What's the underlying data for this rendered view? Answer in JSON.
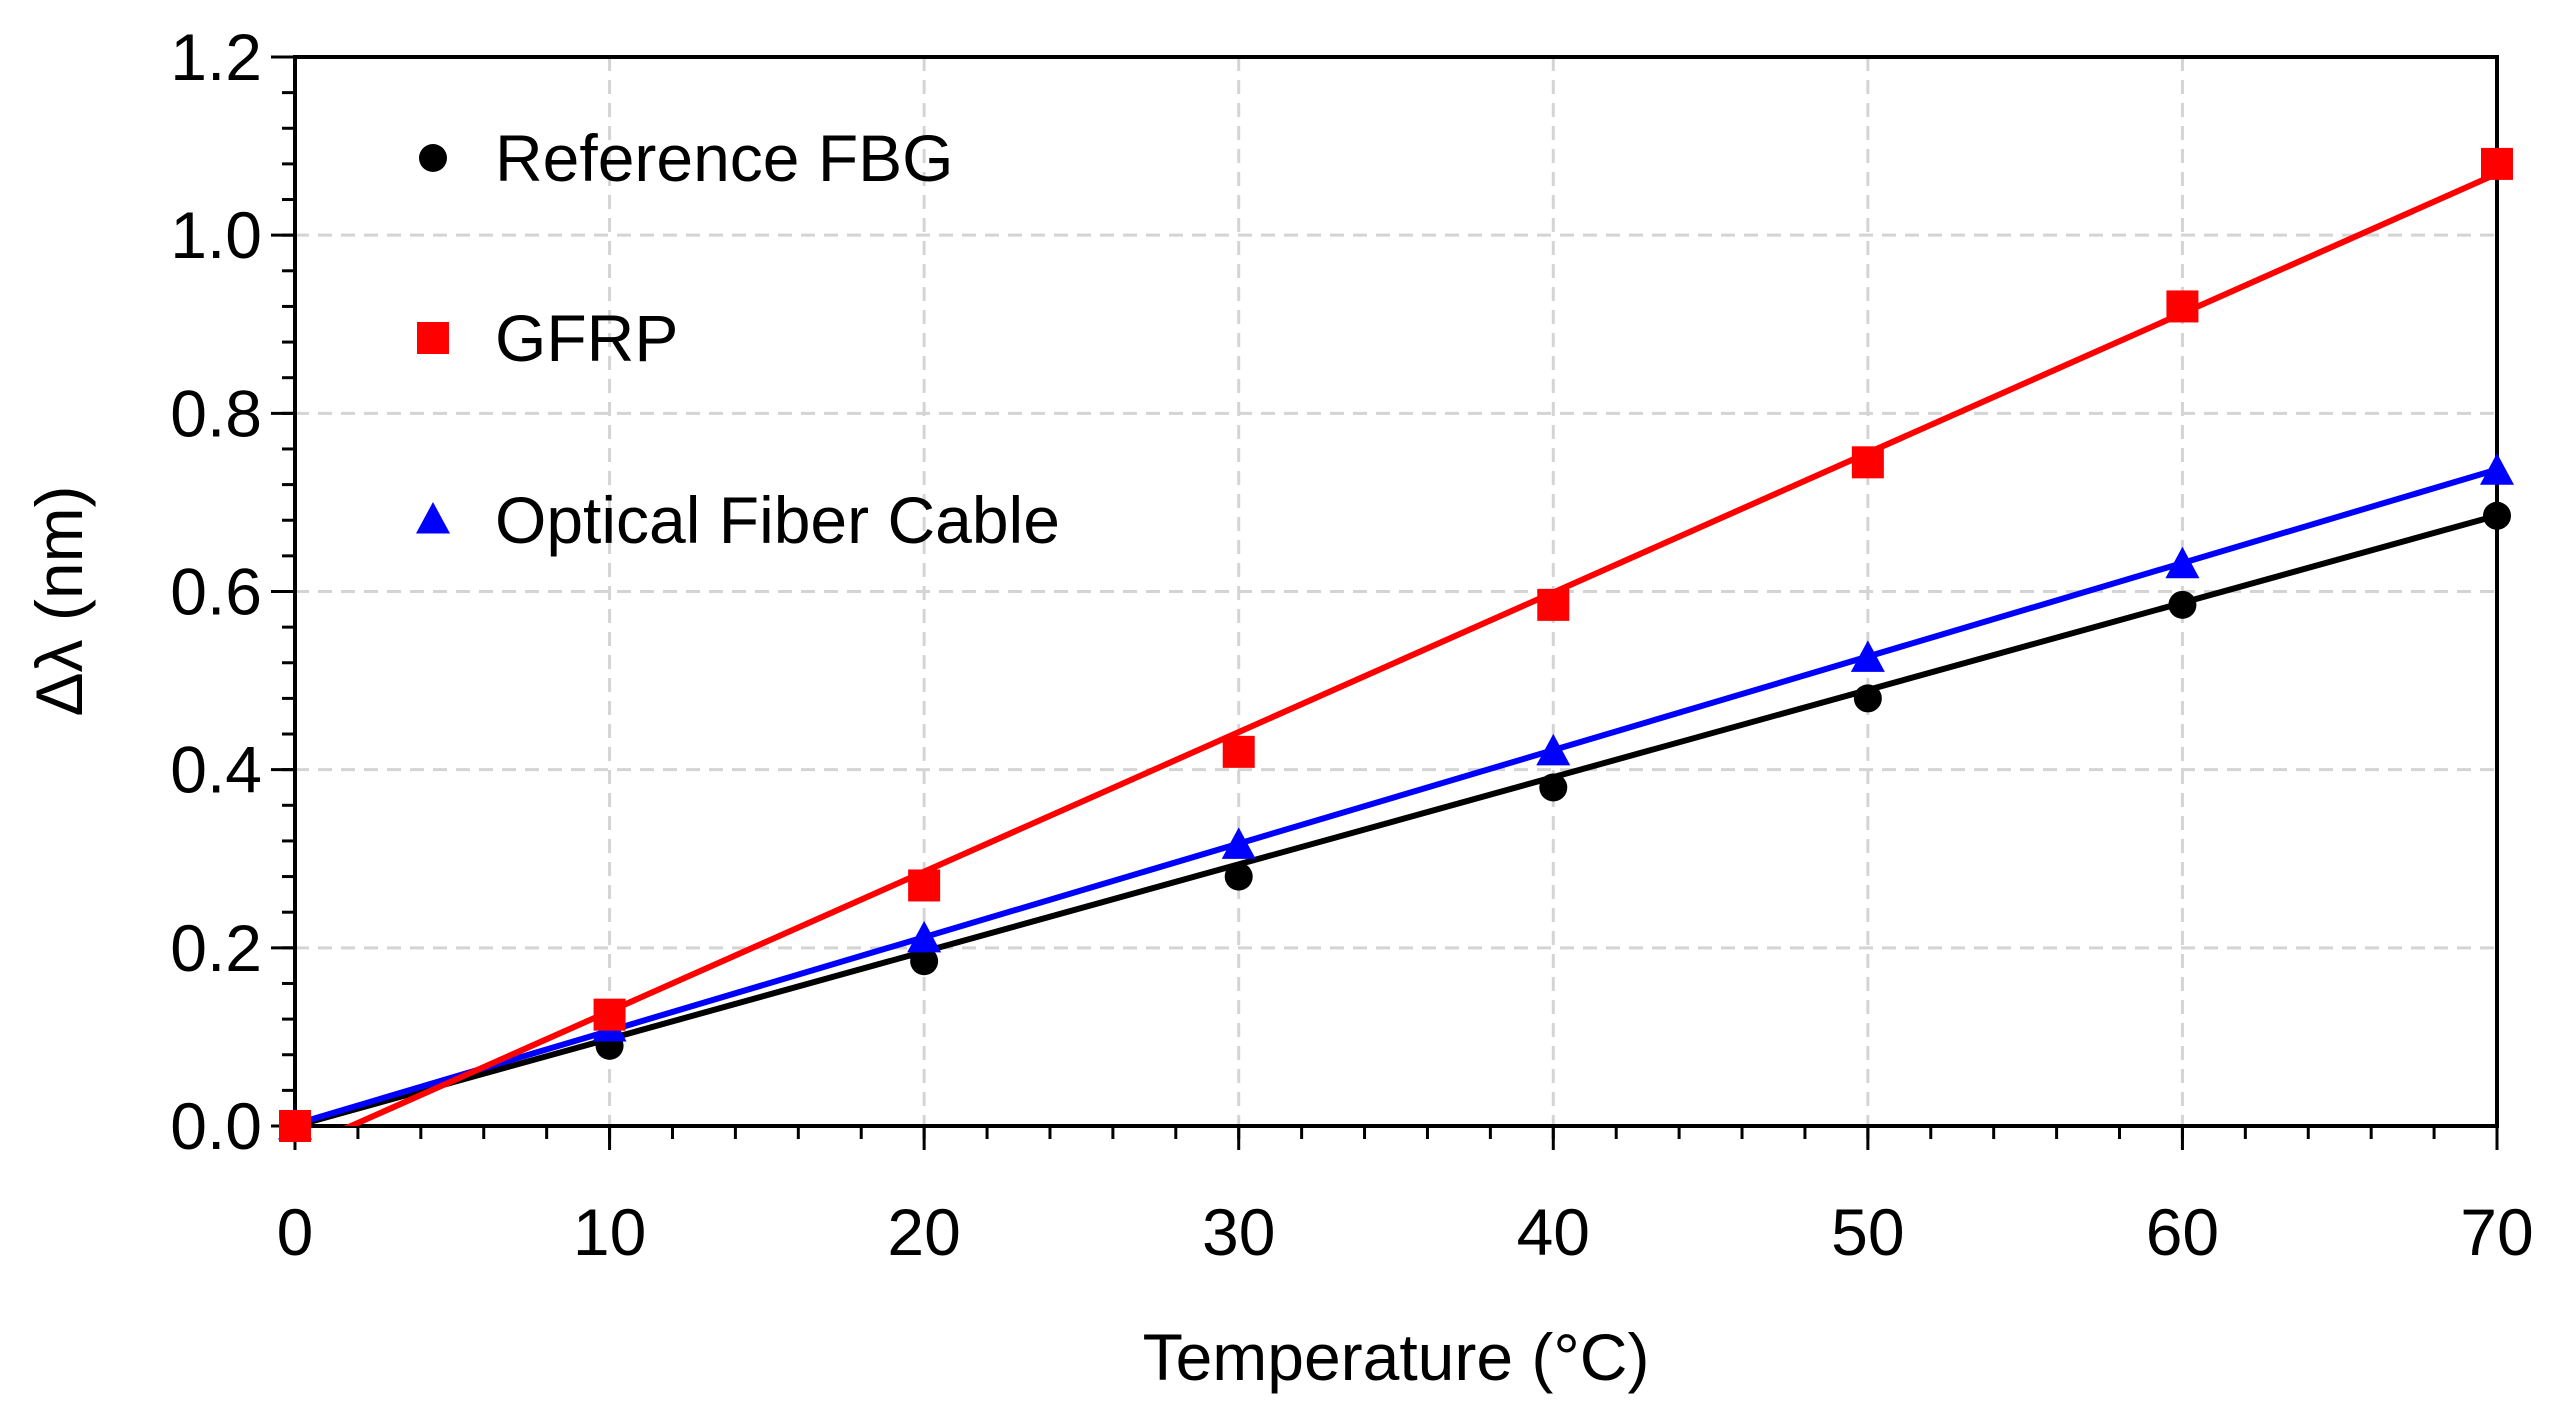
{
  "chart_data": {
    "type": "scatter",
    "title": "",
    "xlabel": "Temperature (°C)",
    "ylabel": "Δλ (nm)",
    "xlim": [
      0,
      70
    ],
    "ylim": [
      0,
      1.2
    ],
    "xticks": [
      0,
      10,
      20,
      30,
      40,
      50,
      60,
      70
    ],
    "yticks": [
      0,
      0.2,
      0.4,
      0.6,
      0.8,
      1.0,
      1.2
    ],
    "xtick_labels": [
      "0",
      "10",
      "20",
      "30",
      "40",
      "50",
      "60",
      "70"
    ],
    "ytick_labels": [
      "0.0",
      "0.2",
      "0.4",
      "0.6",
      "0.8",
      "1.0",
      "1.2"
    ],
    "x_minor_step": 2,
    "y_minor_step": 0.04,
    "grid": true,
    "legend_position": "top-left",
    "series": [
      {
        "name": "Reference FBG",
        "marker": "circle",
        "color": "#000000",
        "x": [
          0,
          10,
          20,
          30,
          40,
          50,
          60,
          70
        ],
        "values": [
          0.0,
          0.09,
          0.185,
          0.28,
          0.38,
          0.48,
          0.585,
          0.685
        ],
        "fit": {
          "slope": 0.00979,
          "intercept": 0.0
        }
      },
      {
        "name": "GFRP",
        "marker": "square",
        "color": "#ff0000",
        "x": [
          0,
          10,
          20,
          30,
          40,
          50,
          60,
          70
        ],
        "values": [
          0.0,
          0.125,
          0.27,
          0.42,
          0.585,
          0.745,
          0.92,
          1.08
        ],
        "fit": {
          "slope": 0.01567,
          "intercept": -0.0279
        }
      },
      {
        "name": "Optical Fiber Cable",
        "marker": "triangle",
        "color": "#0000ff",
        "x": [
          0,
          10,
          20,
          30,
          40,
          50,
          60,
          70
        ],
        "values": [
          0.0,
          0.11,
          0.21,
          0.315,
          0.42,
          0.525,
          0.63,
          0.735
        ],
        "fit": {
          "slope": 0.0105,
          "intercept": 0.002
        }
      }
    ]
  }
}
